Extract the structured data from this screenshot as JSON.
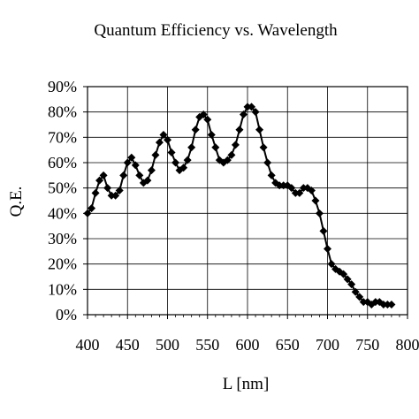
{
  "chart_data": {
    "type": "line",
    "title": "Quantum Efficiency vs. Wavelength",
    "xlabel": "L [nm]",
    "ylabel": "Q.E.",
    "xlim": [
      400,
      800
    ],
    "ylim": [
      0,
      90
    ],
    "x_ticks": [
      "400",
      "450",
      "500",
      "550",
      "600",
      "650",
      "700",
      "750",
      "800"
    ],
    "y_ticks": [
      "0%",
      "10%",
      "20%",
      "30%",
      "40%",
      "50%",
      "60%",
      "70%",
      "80%",
      "90%"
    ],
    "grid": true,
    "marker": "diamond",
    "series": [
      {
        "x": [
          400,
          405,
          410,
          415,
          420,
          425,
          430,
          435,
          440,
          445,
          450,
          455,
          460,
          465,
          470,
          475,
          480,
          485,
          490,
          495,
          500,
          505,
          510,
          515,
          520,
          525,
          530,
          535,
          540,
          545,
          550,
          555,
          560,
          565,
          570,
          575,
          580,
          585,
          590,
          595,
          600,
          605,
          610,
          615,
          620,
          625,
          630,
          635,
          640,
          645,
          650,
          655,
          660,
          665,
          670,
          675,
          680,
          685,
          690,
          695,
          700,
          705,
          710,
          715,
          720,
          725,
          730,
          735,
          740,
          745,
          750,
          755,
          760,
          765,
          770,
          775,
          780
        ],
        "y": [
          40,
          42,
          48,
          53,
          55,
          50,
          47,
          47,
          49,
          55,
          60,
          62,
          59,
          55,
          52,
          53,
          57,
          63,
          68,
          71,
          69,
          64,
          60,
          57,
          58,
          61,
          66,
          73,
          78,
          79,
          77,
          71,
          66,
          61,
          60,
          61,
          63,
          67,
          73,
          79,
          82,
          82,
          80,
          73,
          66,
          60,
          55,
          52,
          51,
          51,
          51,
          50,
          48,
          48,
          50,
          50,
          49,
          45,
          40,
          33,
          26,
          20,
          18,
          17,
          16,
          14,
          12,
          9,
          7,
          5,
          5,
          4,
          5,
          5,
          4,
          4,
          4
        ]
      }
    ]
  }
}
